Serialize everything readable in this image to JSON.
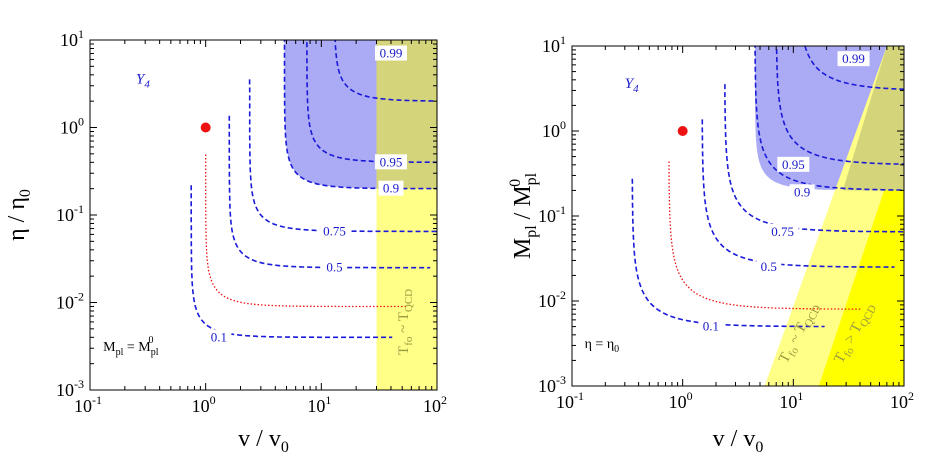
{
  "chart_data": [
    {
      "type": "contour",
      "panel": "left",
      "xlabel": "v / v",
      "xlabel_sub": "0",
      "ylabel": "η / η",
      "ylabel_sub": "0",
      "xscale": "log",
      "yscale": "log",
      "xlim": [
        0.1,
        100
      ],
      "ylim": [
        0.001,
        10
      ],
      "xticks": [
        {
          "base": "10",
          "exp": "-1"
        },
        {
          "base": "10",
          "exp": "0"
        },
        {
          "base": "10",
          "exp": "1"
        },
        {
          "base": "10",
          "exp": "2"
        }
      ],
      "yticks": [
        {
          "base": "10",
          "exp": "-3"
        },
        {
          "base": "10",
          "exp": "-2"
        },
        {
          "base": "10",
          "exp": "-1"
        },
        {
          "base": "10",
          "exp": "0"
        },
        {
          "base": "10",
          "exp": "1"
        }
      ],
      "panel_label": {
        "main": "Y",
        "sub": "4"
      },
      "annotation": {
        "lhs": "M",
        "lhs_sub": "pl",
        "eq": " = M",
        "rhs_sub": "pl",
        "rhs_sup": "0"
      },
      "point": {
        "x": 1,
        "y": 1
      },
      "contours": [
        {
          "label": "0.1",
          "x_asym": 0.75,
          "y_asym": 0.004,
          "label_at": [
            1.3,
            0.004
          ]
        },
        {
          "label": "0.5",
          "x_asym": 1.6,
          "y_asym": 0.025,
          "label_at": [
            13,
            0.025
          ]
        },
        {
          "label": "0.75",
          "x_asym": 2.4,
          "y_asym": 0.065,
          "label_at": [
            13,
            0.065
          ]
        },
        {
          "label": "0.9",
          "x_asym": 4.8,
          "y_asym": 0.2,
          "label_at": [
            40,
            0.2
          ]
        },
        {
          "label": "0.95",
          "x_asym": 7.5,
          "y_asym": 0.4,
          "label_at": [
            40,
            0.4
          ]
        },
        {
          "label": "0.99",
          "x_asym": 13,
          "y_asym": 2.0,
          "label_at": [
            40,
            7.0
          ]
        }
      ],
      "reference_curve": {
        "style": "red dotted",
        "x_asym": 1.0,
        "y_asym": 0.009
      },
      "shaded_regions": [
        {
          "name": "blue",
          "color": "#aaaaf5",
          "description": "above 0.9 contour"
        },
        {
          "name": "yellow",
          "color": "#ffff88",
          "x_min": 30
        }
      ],
      "region_labels": [
        {
          "main": "T",
          "sub": "fo",
          "rel": " ~ T",
          "sub2": "QCD"
        }
      ]
    },
    {
      "type": "contour",
      "panel": "right",
      "xlabel": "v / v",
      "xlabel_sub": "0",
      "ylabel": "M / M",
      "ylabel_sub": "pl",
      "ylabel_sub2": "pl",
      "ylabel_sup2": "0",
      "xscale": "log",
      "yscale": "log",
      "xlim": [
        0.1,
        100
      ],
      "ylim": [
        0.001,
        10
      ],
      "xticks": [
        {
          "base": "10",
          "exp": "-1"
        },
        {
          "base": "10",
          "exp": "0"
        },
        {
          "base": "10",
          "exp": "1"
        },
        {
          "base": "10",
          "exp": "2"
        }
      ],
      "yticks": [
        {
          "base": "10",
          "exp": "-3"
        },
        {
          "base": "10",
          "exp": "-2"
        },
        {
          "base": "10",
          "exp": "-1"
        },
        {
          "base": "10",
          "exp": "0"
        },
        {
          "base": "10",
          "exp": "1"
        }
      ],
      "panel_label": {
        "main": "Y",
        "sub": "4"
      },
      "annotation": {
        "lhs": "η = η",
        "lhs_sub": "0"
      },
      "point": {
        "x": 1,
        "y": 1
      },
      "contours": [
        {
          "label": "0.1",
          "x_asym": 0.35,
          "y_asym": 0.005,
          "label_at": [
            1.8,
            0.005
          ]
        },
        {
          "label": "0.5",
          "x_asym": 1.5,
          "y_asym": 0.025,
          "label_at": [
            6,
            0.025
          ]
        },
        {
          "label": "0.75",
          "x_asym": 2.4,
          "y_asym": 0.065,
          "label_at": [
            8,
            0.065
          ]
        },
        {
          "label": "0.9",
          "x_asym": 4.5,
          "y_asym": 0.2,
          "label_at": [
            12,
            0.19
          ]
        },
        {
          "label": "0.95",
          "x_asym": 7.0,
          "y_asym": 0.4,
          "label_at": [
            10,
            0.4
          ]
        },
        {
          "label": "0.99",
          "x_asym": 11,
          "y_asym": 3.0,
          "label_at": [
            35,
            7.0
          ]
        }
      ],
      "reference_curve": {
        "style": "red dotted",
        "x_asym": 0.75,
        "y_asym": 0.008
      },
      "shaded_regions": [
        {
          "name": "blue",
          "color": "#aaaaf5",
          "description": "above 0.9 contour"
        },
        {
          "name": "light-yellow",
          "color": "#ffff88",
          "description": "T_fo ~ T_QCD band"
        },
        {
          "name": "yellow",
          "color": "#ffff00",
          "description": "T_fo > T_QCD"
        }
      ],
      "region_labels": [
        {
          "main": "T",
          "sub": "fo",
          "rel": " ~ T",
          "sub2": "QCD"
        },
        {
          "main": "T",
          "sub": "fo",
          "rel": " > T",
          "sub2": "QCD"
        }
      ]
    }
  ],
  "colors": {
    "contour": "#1a1ad8",
    "reference": "#ee1111",
    "blue_region": "#aaaaf5",
    "yellow_light": "#ffff88",
    "yellow_strong": "#ffff00",
    "overlap": "#d4d47a",
    "dashed_in_overlap": "#7a7a90"
  }
}
